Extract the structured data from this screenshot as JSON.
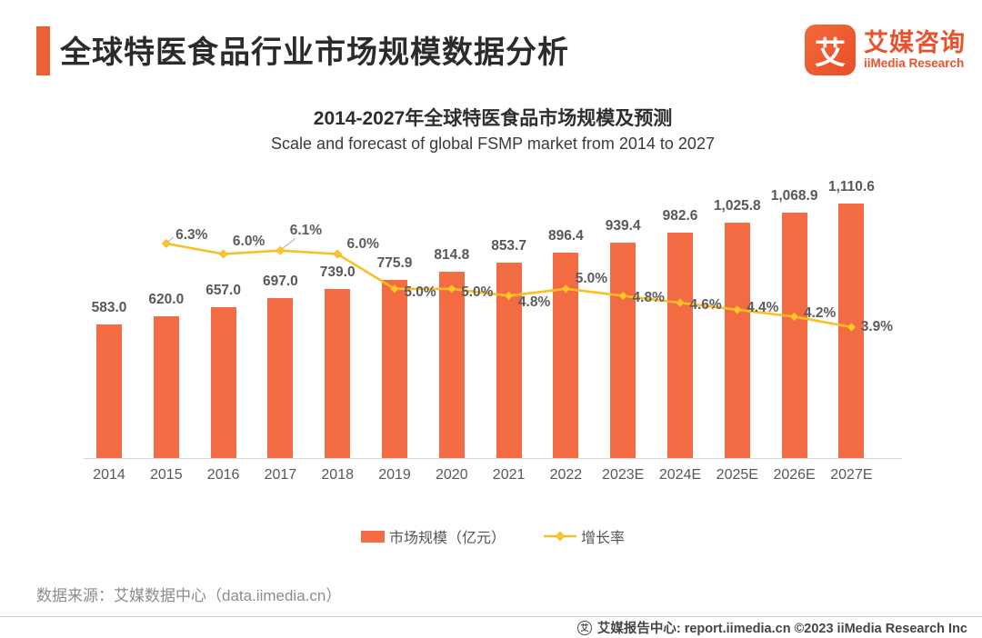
{
  "header": {
    "title": "全球特医食品行业市场规模数据分析",
    "logo": {
      "glyph": "艾",
      "name_cn": "艾媒咨询",
      "name_en": "iiMedia Research"
    }
  },
  "chart_data": {
    "type": "bar+line",
    "title": "2014-2027年全球特医食品市场规模及预测",
    "subtitle": "Scale and forecast of global FSMP market from 2014 to 2027",
    "categories": [
      "2014",
      "2015",
      "2016",
      "2017",
      "2018",
      "2019",
      "2020",
      "2021",
      "2022",
      "2023E",
      "2024E",
      "2025E",
      "2026E",
      "2027E"
    ],
    "series": [
      {
        "name": "市场规模（亿元）",
        "type": "bar",
        "color": "#F26B43",
        "values": [
          583.0,
          620.0,
          657.0,
          697.0,
          739.0,
          775.9,
          814.8,
          853.7,
          896.4,
          939.4,
          982.6,
          1025.8,
          1068.9,
          1110.6
        ],
        "labels": [
          "583.0",
          "620.0",
          "657.0",
          "697.0",
          "739.0",
          "775.9",
          "814.8",
          "853.7",
          "896.4",
          "939.4",
          "982.6",
          "1,025.8",
          "1,068.9",
          "1,110.6"
        ]
      },
      {
        "name": "增长率",
        "type": "line",
        "color": "#FBBF24",
        "values": [
          null,
          6.3,
          6.0,
          6.1,
          6.0,
          5.0,
          5.0,
          4.8,
          5.0,
          4.8,
          4.6,
          4.4,
          4.2,
          3.9
        ],
        "labels": [
          null,
          "6.3%",
          "6.0%",
          "6.1%",
          "6.0%",
          "5.0%",
          "5.0%",
          "4.8%",
          "5.0%",
          "4.8%",
          "4.6%",
          "4.4%",
          "4.2%",
          "3.9%"
        ]
      }
    ],
    "legend": [
      "市场规模（亿元）",
      "增长率"
    ],
    "ylim_bar": [
      0,
      1200
    ],
    "ylim_line_pct": [
      0,
      7
    ],
    "grid": false,
    "legend_position": "bottom"
  },
  "footer": {
    "source_note": "数据来源：艾媒数据中心（data.iimedia.cn）",
    "text": "艾媒报告中心: report.iimedia.cn  ©2023  iiMedia Research  Inc"
  },
  "colors": {
    "accent": "#EC6034",
    "brand_text": "#E8532E",
    "bar": "#F26B43",
    "line": "#FBBF24",
    "label_gray": "#585858",
    "baseline_gray": "#d8d8d8"
  }
}
